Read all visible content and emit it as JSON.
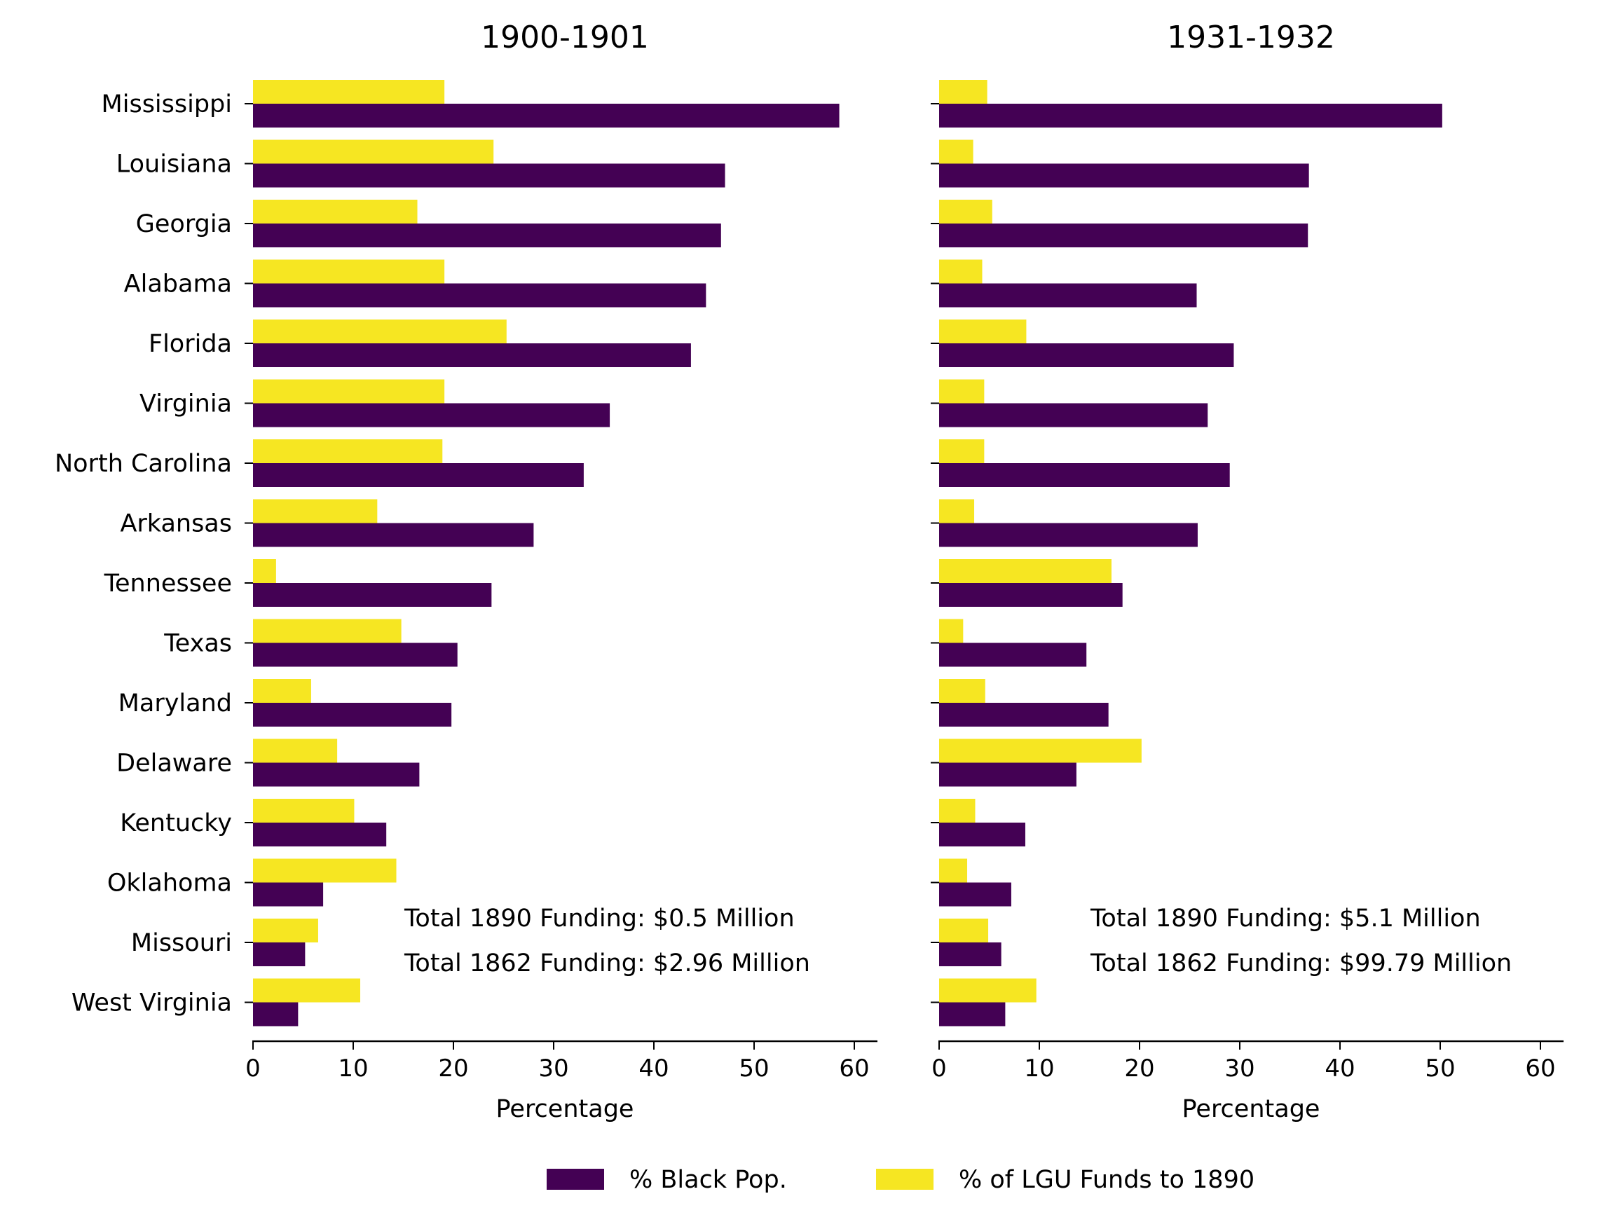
{
  "chart_data": [
    {
      "type": "bar",
      "orientation": "horizontal",
      "title": "1900-1901",
      "xlabel": "Percentage",
      "ylabel": "",
      "xlim": [
        0,
        62
      ],
      "xticks": [
        0,
        10,
        20,
        30,
        40,
        50,
        60
      ],
      "grid": false,
      "categories": [
        "Mississippi",
        "Louisiana",
        "Georgia",
        "Alabama",
        "Florida",
        "Virginia",
        "North Carolina",
        "Arkansas",
        "Tennessee",
        "Texas",
        "Maryland",
        "Delaware",
        "Kentucky",
        "Oklahoma",
        "Missouri",
        "West Virginia"
      ],
      "series": [
        {
          "name": "% Black Pop.",
          "values": [
            58.5,
            47.1,
            46.7,
            45.2,
            43.7,
            35.6,
            33.0,
            28.0,
            23.8,
            20.4,
            19.8,
            16.6,
            13.3,
            7.0,
            5.2,
            4.5
          ]
        },
        {
          "name": "% of LGU Funds to 1890",
          "values": [
            19.1,
            24.0,
            16.4,
            19.1,
            25.3,
            19.1,
            18.9,
            12.4,
            2.3,
            14.8,
            5.8,
            8.4,
            10.1,
            14.3,
            6.5,
            10.7
          ]
        }
      ],
      "annotations": [
        "Total 1890 Funding: $0.5 Million",
        "Total 1862 Funding: $2.96 Million"
      ]
    },
    {
      "type": "bar",
      "orientation": "horizontal",
      "title": "1931-1932",
      "xlabel": "Percentage",
      "ylabel": "",
      "xlim": [
        0,
        62
      ],
      "xticks": [
        0,
        10,
        20,
        30,
        40,
        50,
        60
      ],
      "grid": false,
      "categories": [
        "Mississippi",
        "Louisiana",
        "Georgia",
        "Alabama",
        "Florida",
        "Virginia",
        "North Carolina",
        "Arkansas",
        "Tennessee",
        "Texas",
        "Maryland",
        "Delaware",
        "Kentucky",
        "Oklahoma",
        "Missouri",
        "West Virginia"
      ],
      "series": [
        {
          "name": "% Black Pop.",
          "values": [
            50.2,
            36.9,
            36.8,
            25.7,
            29.4,
            26.8,
            29.0,
            25.8,
            18.3,
            14.7,
            16.9,
            13.7,
            8.6,
            7.2,
            6.2,
            6.6
          ]
        },
        {
          "name": "% of LGU Funds to 1890",
          "values": [
            4.8,
            3.4,
            5.3,
            4.3,
            8.7,
            4.5,
            4.5,
            3.5,
            17.2,
            2.4,
            4.6,
            20.2,
            3.6,
            2.8,
            4.9,
            9.7
          ]
        }
      ],
      "annotations": [
        "Total 1890 Funding: $5.1 Million",
        "Total 1862 Funding: $99.79 Million"
      ]
    }
  ],
  "legend": {
    "position": "bottom-center",
    "items": [
      {
        "label": "% Black Pop.",
        "color": "#440154"
      },
      {
        "label": "% of LGU Funds to 1890",
        "color": "#f6e622"
      }
    ]
  },
  "colors": {
    "black_pop": "#440154",
    "lgu_funds": "#f6e622",
    "axis": "#000000"
  }
}
